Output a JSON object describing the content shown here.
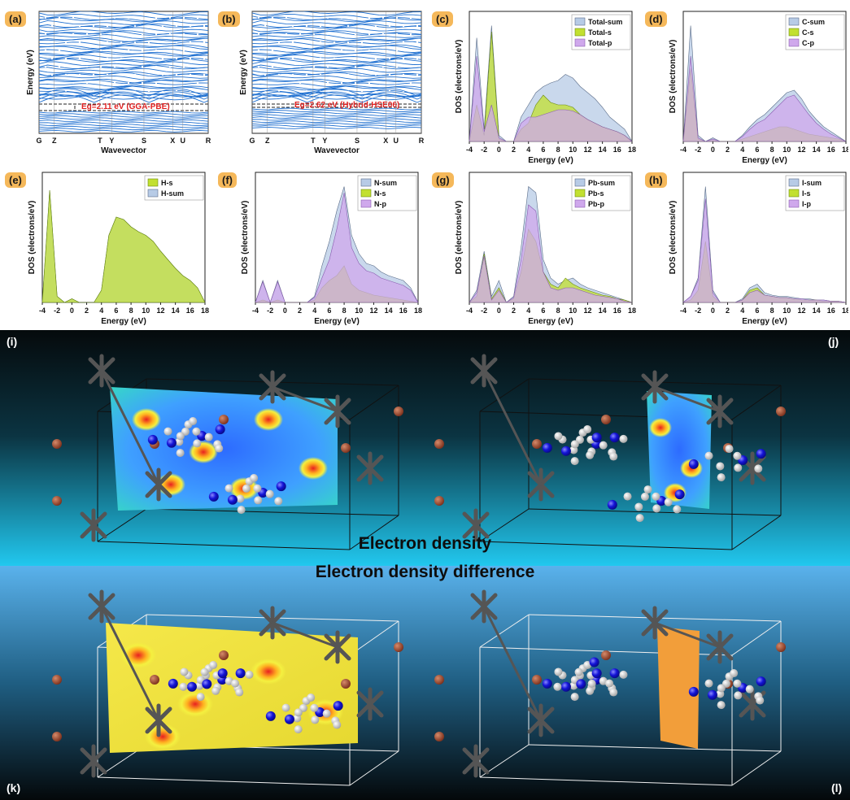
{
  "panels": {
    "a": {
      "tag": "(a)",
      "gap_label": "Eg=2.11 eV (GGA-PBE)"
    },
    "b": {
      "tag": "(b)",
      "gap_label": "Eg=2.62 eV (Hybrid-HSE06)"
    },
    "band_ylabel": "Energy (eV)",
    "band_xlabel": "Wavevector",
    "k_points": [
      "G",
      "Z",
      "T",
      "Y",
      "S",
      "X",
      "U",
      "R"
    ],
    "dos_ylabel": "DOS (electrons/eV)",
    "dos_xlabel": "Energy (eV)",
    "dos_ticks": [
      "-4",
      "-2",
      "0",
      "2",
      "4",
      "6",
      "8",
      "10",
      "12",
      "14",
      "16",
      "18"
    ]
  },
  "scenes": {
    "top_title": "Electron density",
    "bottom_title": "Electron density difference",
    "tags": {
      "i": "(i)",
      "j": "(j)",
      "k": "(k)",
      "l": "(l)"
    }
  },
  "colors": {
    "tag": "#f5b85a",
    "band": "#1e6fd0",
    "sum": "#a9c3e6",
    "s": "#b8d830",
    "p": "#c9a2e8",
    "gap_text": "#e02020"
  },
  "chart_data": [
    {
      "type": "line",
      "panel": "a",
      "title": "",
      "xlabel": "Wavevector",
      "ylabel": "Energy (eV)",
      "categories": [
        "G",
        "Z",
        "T",
        "Y",
        "S",
        "X",
        "U",
        "R"
      ],
      "annotation": "Eg=2.11 eV (GGA-PBE)",
      "band_gap_eV": 2.11
    },
    {
      "type": "line",
      "panel": "b",
      "title": "",
      "xlabel": "Wavevector",
      "ylabel": "Energy (eV)",
      "categories": [
        "G",
        "Z",
        "T",
        "Y",
        "S",
        "X",
        "U",
        "R"
      ],
      "annotation": "Eg=2.62 eV (Hybrid-HSE06)",
      "band_gap_eV": 2.62
    },
    {
      "type": "area",
      "panel": "c",
      "xlabel": "Energy (eV)",
      "ylabel": "DOS (electrons/eV)",
      "xlim": [
        -4,
        18
      ],
      "x": [
        -4,
        -3,
        -2,
        -1,
        0,
        1,
        2,
        3,
        4,
        5,
        6,
        7,
        8,
        9,
        10,
        11,
        12,
        13,
        14,
        15,
        16,
        17,
        18
      ],
      "series": [
        {
          "name": "Total-sum",
          "values": [
            0,
            0.85,
            0.1,
            0.95,
            0.05,
            0,
            0,
            0.2,
            0.3,
            0.4,
            0.45,
            0.48,
            0.5,
            0.55,
            0.52,
            0.45,
            0.4,
            0.35,
            0.28,
            0.2,
            0.15,
            0.1,
            0
          ]
        },
        {
          "name": "Total-s",
          "values": [
            0,
            0.3,
            0.05,
            0.9,
            0.02,
            0,
            0,
            0.1,
            0.15,
            0.3,
            0.38,
            0.32,
            0.3,
            0.3,
            0.28,
            0.22,
            0.18,
            0.15,
            0.12,
            0.1,
            0.08,
            0.05,
            0
          ]
        },
        {
          "name": "Total-p",
          "values": [
            0,
            0.7,
            0.08,
            0.3,
            0.03,
            0,
            0,
            0.15,
            0.2,
            0.2,
            0.22,
            0.24,
            0.26,
            0.26,
            0.25,
            0.22,
            0.18,
            0.15,
            0.12,
            0.1,
            0.08,
            0.05,
            0
          ]
        }
      ]
    },
    {
      "type": "area",
      "panel": "d",
      "xlabel": "Energy (eV)",
      "ylabel": "DOS (electrons/eV)",
      "xlim": [
        -4,
        18
      ],
      "x": [
        -4,
        -3,
        -2,
        -1,
        0,
        1,
        2,
        3,
        4,
        5,
        6,
        7,
        8,
        9,
        10,
        11,
        12,
        13,
        14,
        15,
        16,
        17,
        18
      ],
      "series": [
        {
          "name": "C-sum",
          "values": [
            0,
            0.95,
            0.05,
            0,
            0.03,
            0,
            0,
            0,
            0.05,
            0.12,
            0.18,
            0.22,
            0.28,
            0.34,
            0.4,
            0.42,
            0.35,
            0.25,
            0.18,
            0.12,
            0.08,
            0.04,
            0
          ]
        },
        {
          "name": "C-s",
          "values": [
            0,
            0.6,
            0.02,
            0,
            0.01,
            0,
            0,
            0,
            0.02,
            0.04,
            0.06,
            0.08,
            0.1,
            0.12,
            0.12,
            0.1,
            0.08,
            0.06,
            0.05,
            0.04,
            0.03,
            0.02,
            0
          ]
        },
        {
          "name": "C-p",
          "values": [
            0,
            0.7,
            0.03,
            0,
            0.02,
            0,
            0,
            0,
            0.04,
            0.1,
            0.15,
            0.18,
            0.24,
            0.3,
            0.36,
            0.38,
            0.3,
            0.22,
            0.15,
            0.1,
            0.06,
            0.03,
            0
          ]
        }
      ]
    },
    {
      "type": "area",
      "panel": "e",
      "xlabel": "Energy (eV)",
      "ylabel": "DOS (electrons/eV)",
      "xlim": [
        -4,
        18
      ],
      "x": [
        -4,
        -3,
        -2,
        -1,
        0,
        1,
        2,
        3,
        4,
        5,
        6,
        7,
        8,
        9,
        10,
        11,
        12,
        13,
        14,
        15,
        16,
        17,
        18
      ],
      "series": [
        {
          "name": "H-s",
          "values": [
            0,
            0.92,
            0.05,
            0,
            0.03,
            0,
            0,
            0,
            0.1,
            0.55,
            0.7,
            0.68,
            0.62,
            0.58,
            0.55,
            0.5,
            0.42,
            0.35,
            0.28,
            0.22,
            0.18,
            0.12,
            0
          ]
        },
        {
          "name": "H-sum",
          "values": [
            0,
            0.92,
            0.05,
            0,
            0.03,
            0,
            0,
            0,
            0.1,
            0.55,
            0.7,
            0.68,
            0.62,
            0.58,
            0.55,
            0.5,
            0.42,
            0.35,
            0.28,
            0.22,
            0.18,
            0.12,
            0
          ]
        }
      ]
    },
    {
      "type": "area",
      "panel": "f",
      "xlabel": "Energy (eV)",
      "ylabel": "DOS (electrons/eV)",
      "xlim": [
        -4,
        18
      ],
      "x": [
        -4,
        -3,
        -2,
        -1,
        0,
        1,
        2,
        3,
        4,
        5,
        6,
        7,
        8,
        9,
        10,
        11,
        12,
        13,
        14,
        15,
        16,
        17,
        18
      ],
      "series": [
        {
          "name": "N-sum",
          "values": [
            0,
            0.18,
            0,
            0.18,
            0,
            0,
            0,
            0,
            0.05,
            0.3,
            0.5,
            0.75,
            0.95,
            0.55,
            0.4,
            0.32,
            0.3,
            0.25,
            0.22,
            0.2,
            0.18,
            0.12,
            0
          ]
        },
        {
          "name": "N-s",
          "values": [
            0,
            0.02,
            0,
            0.02,
            0,
            0,
            0,
            0,
            0.02,
            0.12,
            0.18,
            0.22,
            0.3,
            0.15,
            0.1,
            0.08,
            0.06,
            0.05,
            0.04,
            0.03,
            0.02,
            0.01,
            0
          ]
        },
        {
          "name": "N-p",
          "values": [
            0,
            0.17,
            0,
            0.17,
            0,
            0,
            0,
            0,
            0.04,
            0.2,
            0.35,
            0.6,
            0.9,
            0.45,
            0.32,
            0.26,
            0.24,
            0.2,
            0.18,
            0.16,
            0.14,
            0.1,
            0
          ]
        }
      ]
    },
    {
      "type": "area",
      "panel": "g",
      "xlabel": "Energy (eV)",
      "ylabel": "DOS (electrons/eV)",
      "xlim": [
        -4,
        18
      ],
      "x": [
        -4,
        -3,
        -2,
        -1,
        0,
        1,
        2,
        3,
        4,
        5,
        6,
        7,
        8,
        9,
        10,
        11,
        12,
        13,
        14,
        15,
        16,
        17,
        18
      ],
      "series": [
        {
          "name": "Pb-sum",
          "values": [
            0,
            0.1,
            0.42,
            0.05,
            0.18,
            0,
            0.05,
            0.45,
            0.95,
            0.9,
            0.35,
            0.2,
            0.15,
            0.18,
            0.2,
            0.15,
            0.12,
            0.1,
            0.08,
            0.06,
            0.04,
            0.02,
            0
          ]
        },
        {
          "name": "Pb-s",
          "values": [
            0,
            0.05,
            0.4,
            0.03,
            0.12,
            0,
            0.03,
            0.25,
            0.6,
            0.5,
            0.25,
            0.15,
            0.12,
            0.2,
            0.15,
            0.12,
            0.1,
            0.08,
            0.06,
            0.05,
            0.03,
            0.02,
            0
          ]
        },
        {
          "name": "Pb-p",
          "values": [
            0,
            0.08,
            0.38,
            0.02,
            0.1,
            0,
            0.04,
            0.35,
            0.8,
            0.75,
            0.25,
            0.12,
            0.1,
            0.12,
            0.12,
            0.1,
            0.08,
            0.06,
            0.05,
            0.04,
            0.03,
            0.01,
            0
          ]
        }
      ]
    },
    {
      "type": "area",
      "panel": "h",
      "xlabel": "Energy (eV)",
      "ylabel": "DOS (electrons/eV)",
      "xlim": [
        -4,
        18
      ],
      "x": [
        -4,
        -3,
        -2,
        -1,
        0,
        1,
        2,
        3,
        4,
        5,
        6,
        7,
        8,
        9,
        10,
        11,
        12,
        13,
        14,
        15,
        16,
        17,
        18
      ],
      "series": [
        {
          "name": "I-sum",
          "values": [
            0,
            0.05,
            0.2,
            0.95,
            0.1,
            0,
            0,
            0,
            0.03,
            0.12,
            0.15,
            0.08,
            0.06,
            0.05,
            0.05,
            0.04,
            0.03,
            0.03,
            0.02,
            0.02,
            0.01,
            0.01,
            0
          ]
        },
        {
          "name": "I-s",
          "values": [
            0,
            0.02,
            0.1,
            0.5,
            0.05,
            0,
            0,
            0,
            0.02,
            0.1,
            0.12,
            0.06,
            0.05,
            0.04,
            0.04,
            0.03,
            0.02,
            0.02,
            0.02,
            0.01,
            0.01,
            0.01,
            0
          ]
        },
        {
          "name": "I-p",
          "values": [
            0,
            0.05,
            0.18,
            0.85,
            0.08,
            0,
            0,
            0,
            0.02,
            0.08,
            0.1,
            0.06,
            0.05,
            0.04,
            0.04,
            0.03,
            0.03,
            0.02,
            0.02,
            0.02,
            0.01,
            0.01,
            0
          ]
        }
      ]
    }
  ]
}
